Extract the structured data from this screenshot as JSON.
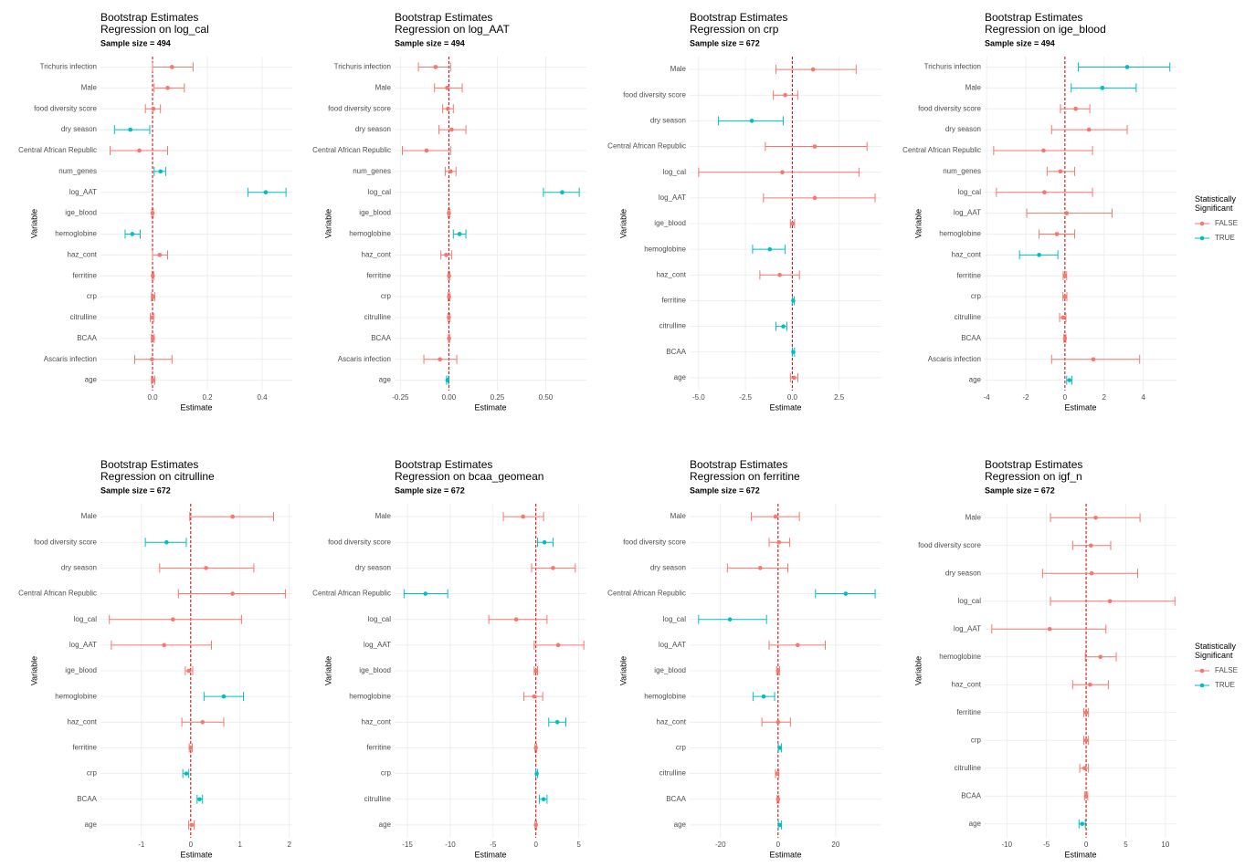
{
  "chart_data": [
    {
      "type": "forest",
      "title": "Bootstrap Estimates",
      "subtitle": "Regression on log_cal",
      "note": "Sample size = 494",
      "xlabel": "Estimate",
      "ylabel": "Variable",
      "categories": [
        "Trichuris infection",
        "Male",
        "food diversity score",
        "dry season",
        "Central African Republic",
        "num_genes",
        "log_AAT",
        "ige_blood",
        "hemoglobine",
        "haz_cont",
        "ferritine",
        "crp",
        "citrulline",
        "BCAA",
        "Ascaris infection",
        "age"
      ],
      "values": [
        0.071,
        0.055,
        0.003,
        -0.081,
        -0.048,
        0.029,
        0.413,
        0,
        -0.074,
        0.026,
        0.001,
        0.002,
        -0.002,
        0.001,
        -0.002,
        0.002
      ],
      "lower": [
        0,
        0.006,
        -0.026,
        -0.139,
        -0.155,
        0.006,
        0.348,
        -0.003,
        -0.1,
        0,
        -0.002,
        -0.004,
        -0.008,
        -0.004,
        -0.065,
        -0.004
      ],
      "upper": [
        0.148,
        0.116,
        0.029,
        -0.01,
        0.055,
        0.048,
        0.487,
        0.003,
        -0.045,
        0.055,
        0.004,
        0.008,
        0.004,
        0.006,
        0.071,
        0.008
      ],
      "significant": [
        false,
        false,
        false,
        true,
        false,
        true,
        true,
        false,
        true,
        false,
        false,
        false,
        false,
        false,
        false,
        false
      ],
      "colors": [
        "#F8766D",
        "#00BFC4"
      ],
      "ref_line": 0,
      "ref_color": "#cc0000",
      "grid": true,
      "xlim": [
        -0.19,
        0.51
      ],
      "xticks": [
        {
          "value": 0,
          "label": "0.0"
        },
        0.2,
        0.4
      ]
    },
    {
      "type": "forest",
      "title": "Bootstrap Estimates",
      "subtitle": "Regression on log_AAT",
      "note": "Sample size = 494",
      "xlabel": "Estimate",
      "ylabel": "Variable",
      "categories": [
        "Trichuris infection",
        "Male",
        "food diversity score",
        "dry season",
        "Central African Republic",
        "num_genes",
        "log_cal",
        "ige_blood",
        "hemoglobine",
        "haz_cont",
        "ferritine",
        "crp",
        "citrulline",
        "BCAA",
        "Ascaris infection",
        "age"
      ],
      "values": [
        -0.069,
        -0.009,
        -0.005,
        0.014,
        -0.115,
        0.009,
        0.585,
        0,
        0.055,
        -0.014,
        0.001,
        0.001,
        0,
        0.001,
        -0.046,
        -0.007
      ],
      "lower": [
        -0.157,
        -0.074,
        -0.032,
        -0.051,
        -0.24,
        -0.018,
        0.488,
        -0.005,
        0.023,
        -0.041,
        -0.003,
        -0.004,
        -0.005,
        -0.002,
        -0.129,
        -0.012
      ],
      "upper": [
        0.009,
        0.069,
        0.023,
        0.088,
        0.009,
        0.037,
        0.673,
        0.005,
        0.088,
        0.014,
        0.005,
        0.006,
        0.005,
        0.004,
        0.041,
        -0.002
      ],
      "significant": [
        false,
        false,
        false,
        false,
        false,
        false,
        true,
        false,
        true,
        false,
        false,
        false,
        false,
        false,
        false,
        true
      ],
      "colors": [
        "#F8766D",
        "#00BFC4"
      ],
      "ref_line": 0,
      "ref_color": "#cc0000",
      "grid": true,
      "xlim": [
        -0.28,
        0.71
      ],
      "xticks": [
        -0.25,
        {
          "value": 0,
          "label": "0.00"
        },
        0.25,
        {
          "value": 0.5,
          "label": "0.50"
        }
      ]
    },
    {
      "type": "forest",
      "title": "Bootstrap Estimates",
      "subtitle": "Regression on crp",
      "note": "Sample size = 672",
      "xlabel": "Estimate",
      "ylabel": "Variable",
      "categories": [
        "Male",
        "food diversity score",
        "dry season",
        "Central African Republic",
        "log_cal",
        "log_AAT",
        "ige_blood",
        "hemoglobine",
        "haz_cont",
        "ferritine",
        "citrulline",
        "BCAA",
        "age"
      ],
      "values": [
        1.11,
        -0.38,
        -2.16,
        1.2,
        -0.53,
        1.2,
        0.02,
        -1.2,
        -0.67,
        0.05,
        -0.48,
        0.05,
        0.1
      ],
      "lower": [
        -0.87,
        -1.01,
        -3.94,
        -1.44,
        -5.0,
        -1.54,
        -0.1,
        -2.12,
        -1.73,
        0,
        -0.87,
        0.01,
        -0.1
      ],
      "upper": [
        3.41,
        0.29,
        -0.48,
        3.99,
        3.56,
        4.42,
        0.12,
        -0.38,
        0.38,
        0.1,
        -0.29,
        0.12,
        0.3
      ],
      "significant": [
        false,
        false,
        true,
        false,
        false,
        false,
        false,
        true,
        false,
        true,
        true,
        true,
        false
      ],
      "colors": [
        "#F8766D",
        "#00BFC4"
      ],
      "ref_line": 0,
      "ref_color": "#cc0000",
      "grid": true,
      "xlim": [
        -5.48,
        4.76
      ],
      "xticks": [
        {
          "value": -5,
          "label": "-5.0"
        },
        -2.5,
        {
          "value": 0,
          "label": "0.0"
        },
        2.5
      ]
    },
    {
      "type": "forest",
      "title": "Bootstrap Estimates",
      "subtitle": "Regression on ige_blood",
      "note": "Sample size = 494",
      "xlabel": "Estimate",
      "ylabel": "Variable",
      "categories": [
        "Trichuris infection",
        "Male",
        "food diversity score",
        "dry season",
        "Central African Republic",
        "num_genes",
        "log_cal",
        "log_AAT",
        "hemoglobine",
        "haz_cont",
        "ferritine",
        "crp",
        "citrulline",
        "BCAA",
        "Ascaris infection",
        "age"
      ],
      "values": [
        3.18,
        1.91,
        0.55,
        1.23,
        -1.09,
        -0.23,
        -1.05,
        0.09,
        -0.41,
        -1.32,
        0,
        0,
        -0.09,
        0,
        1.45,
        0.23
      ],
      "lower": [
        0.68,
        0.32,
        -0.23,
        -0.68,
        -3.64,
        -0.91,
        -3.5,
        -1.95,
        -1.32,
        -2.32,
        -0.09,
        -0.1,
        -0.27,
        -0.05,
        -0.68,
        0.09
      ],
      "upper": [
        5.36,
        3.64,
        1.27,
        3.18,
        1.41,
        0.5,
        1.41,
        2.41,
        0.5,
        -0.36,
        0.09,
        0.1,
        0.05,
        0.05,
        3.82,
        0.36
      ],
      "significant": [
        true,
        true,
        false,
        false,
        false,
        false,
        false,
        false,
        false,
        true,
        false,
        false,
        false,
        false,
        false,
        true
      ],
      "colors": [
        "#F8766D",
        "#00BFC4"
      ],
      "ref_line": 0,
      "ref_color": "#cc0000",
      "grid": true,
      "xlim": [
        -4.1,
        5.7
      ],
      "xticks": [
        -4,
        -2,
        0,
        2,
        4
      ],
      "legend": {
        "title": "Statistically Significant",
        "labels": [
          "FALSE",
          "TRUE"
        ]
      }
    },
    {
      "type": "forest",
      "title": "Bootstrap Estimates",
      "subtitle": "Regression on citrulline",
      "note": "Sample size = 672",
      "xlabel": "Estimate",
      "ylabel": "Variable",
      "categories": [
        "Male",
        "food diversity score",
        "dry season",
        "Central African Republic",
        "log_cal",
        "log_AAT",
        "ige_blood",
        "hemoglobine",
        "haz_cont",
        "ferritine",
        "crp",
        "BCAA",
        "age"
      ],
      "values": [
        0.85,
        -0.49,
        0.31,
        0.85,
        -0.36,
        -0.54,
        -0.04,
        0.67,
        0.24,
        0,
        -0.09,
        0.18,
        0.02
      ],
      "lower": [
        -0.02,
        -0.92,
        -0.63,
        -0.25,
        -1.65,
        -1.61,
        -0.11,
        0.27,
        -0.18,
        -0.03,
        -0.16,
        0.13,
        -0.04
      ],
      "upper": [
        1.68,
        -0.09,
        1.28,
        1.92,
        1.03,
        0.42,
        0.04,
        1.07,
        0.67,
        0.03,
        -0.04,
        0.24,
        0.07
      ],
      "significant": [
        false,
        true,
        false,
        false,
        false,
        false,
        false,
        true,
        false,
        false,
        true,
        true,
        false
      ],
      "colors": [
        "#F8766D",
        "#00BFC4"
      ],
      "ref_line": 0,
      "ref_color": "#cc0000",
      "grid": true,
      "xlim": [
        -1.83,
        2.06
      ],
      "xticks": [
        -1,
        0,
        1,
        2
      ]
    },
    {
      "type": "forest",
      "title": "Bootstrap Estimates",
      "subtitle": "Regression on bcaa_geomean",
      "note": "Sample size = 672",
      "xlabel": "Estimate",
      "ylabel": "Variable",
      "categories": [
        "Male",
        "food diversity score",
        "dry season",
        "Central African Republic",
        "log_cal",
        "log_AAT",
        "ige_blood",
        "hemoglobine",
        "haz_cont",
        "ferritine",
        "crp",
        "citrulline",
        "age"
      ],
      "values": [
        -1.5,
        1.0,
        2.0,
        -12.9,
        -2.3,
        2.6,
        0,
        -0.2,
        2.5,
        0,
        0.1,
        0.9,
        0
      ],
      "lower": [
        -3.8,
        0.2,
        -0.5,
        -15.4,
        -5.5,
        -0.2,
        -0.2,
        -1.4,
        1.5,
        -0.1,
        0,
        0.4,
        -0.1
      ],
      "upper": [
        0.9,
        2.0,
        4.6,
        -10.3,
        1.3,
        5.6,
        0.2,
        0.8,
        3.5,
        0.1,
        0.2,
        1.3,
        0.1
      ],
      "significant": [
        false,
        true,
        false,
        true,
        false,
        false,
        false,
        false,
        true,
        false,
        true,
        true,
        false
      ],
      "colors": [
        "#F8766D",
        "#00BFC4"
      ],
      "ref_line": 0,
      "ref_color": "#cc0000",
      "grid": true,
      "xlim": [
        -16.5,
        5.9
      ],
      "xticks": [
        -15,
        -10,
        -5,
        0,
        5
      ]
    },
    {
      "type": "forest",
      "title": "Bootstrap Estimates",
      "subtitle": "Regression on ferritine",
      "note": "Sample size = 672",
      "xlabel": "Estimate",
      "ylabel": "Variable",
      "categories": [
        "Male",
        "food diversity score",
        "dry season",
        "Central African Republic",
        "log_cal",
        "log_AAT",
        "ige_blood",
        "hemoglobine",
        "haz_cont",
        "crp",
        "citrulline",
        "BCAA",
        "age"
      ],
      "values": [
        -0.9,
        0.3,
        -6.2,
        23.5,
        -16.7,
        6.8,
        0,
        -5.0,
        0,
        0.6,
        -0.3,
        0,
        0.6
      ],
      "lower": [
        -9.3,
        -3.1,
        -17.6,
        13.0,
        -27.6,
        -3.1,
        -0.5,
        -8.7,
        -5.6,
        0.1,
        -0.9,
        -0.3,
        0.1
      ],
      "upper": [
        7.4,
        4.0,
        3.4,
        33.7,
        -4.0,
        16.4,
        0.5,
        -1.2,
        4.3,
        1.2,
        0.3,
        0.3,
        1.2
      ],
      "significant": [
        false,
        false,
        false,
        true,
        true,
        false,
        false,
        true,
        false,
        true,
        false,
        false,
        true
      ],
      "colors": [
        "#F8766D",
        "#00BFC4"
      ],
      "ref_line": 0,
      "ref_color": "#cc0000",
      "grid": true,
      "xlim": [
        -30.7,
        35.9
      ],
      "xticks": [
        -20,
        0,
        20
      ]
    },
    {
      "type": "forest",
      "title": "Bootstrap Estimates",
      "subtitle": "Regression on igf_n",
      "note": "Sample size = 672",
      "xlabel": "Estimate",
      "ylabel": "Variable",
      "categories": [
        "Male",
        "food diversity score",
        "dry season",
        "log_cal",
        "log_AAT",
        "hemoglobine",
        "haz_cont",
        "ferritine",
        "crp",
        "citrulline",
        "BCAA",
        "age"
      ],
      "values": [
        1.2,
        0.6,
        0.7,
        3.0,
        -4.6,
        1.8,
        0.5,
        0,
        0,
        -0.2,
        0,
        -0.5
      ],
      "lower": [
        -4.5,
        -1.7,
        -5.5,
        -4.5,
        -11.9,
        -0.1,
        -1.7,
        -0.3,
        -0.3,
        -0.8,
        -0.2,
        -0.9
      ],
      "upper": [
        6.8,
        3.1,
        6.5,
        11.2,
        2.5,
        3.8,
        2.8,
        0.3,
        0.3,
        0.3,
        0.2,
        -0.1
      ],
      "significant": [
        false,
        false,
        false,
        false,
        false,
        false,
        false,
        false,
        false,
        false,
        false,
        true
      ],
      "colors": [
        "#F8766D",
        "#00BFC4"
      ],
      "ref_line": 0,
      "ref_color": "#cc0000",
      "grid": true,
      "xlim": [
        -12.8,
        11.4
      ],
      "xticks": [
        -10,
        -5,
        0,
        5,
        10
      ],
      "legend": {
        "title": "Statistically Significant",
        "labels": [
          "FALSE",
          "TRUE"
        ]
      }
    }
  ]
}
